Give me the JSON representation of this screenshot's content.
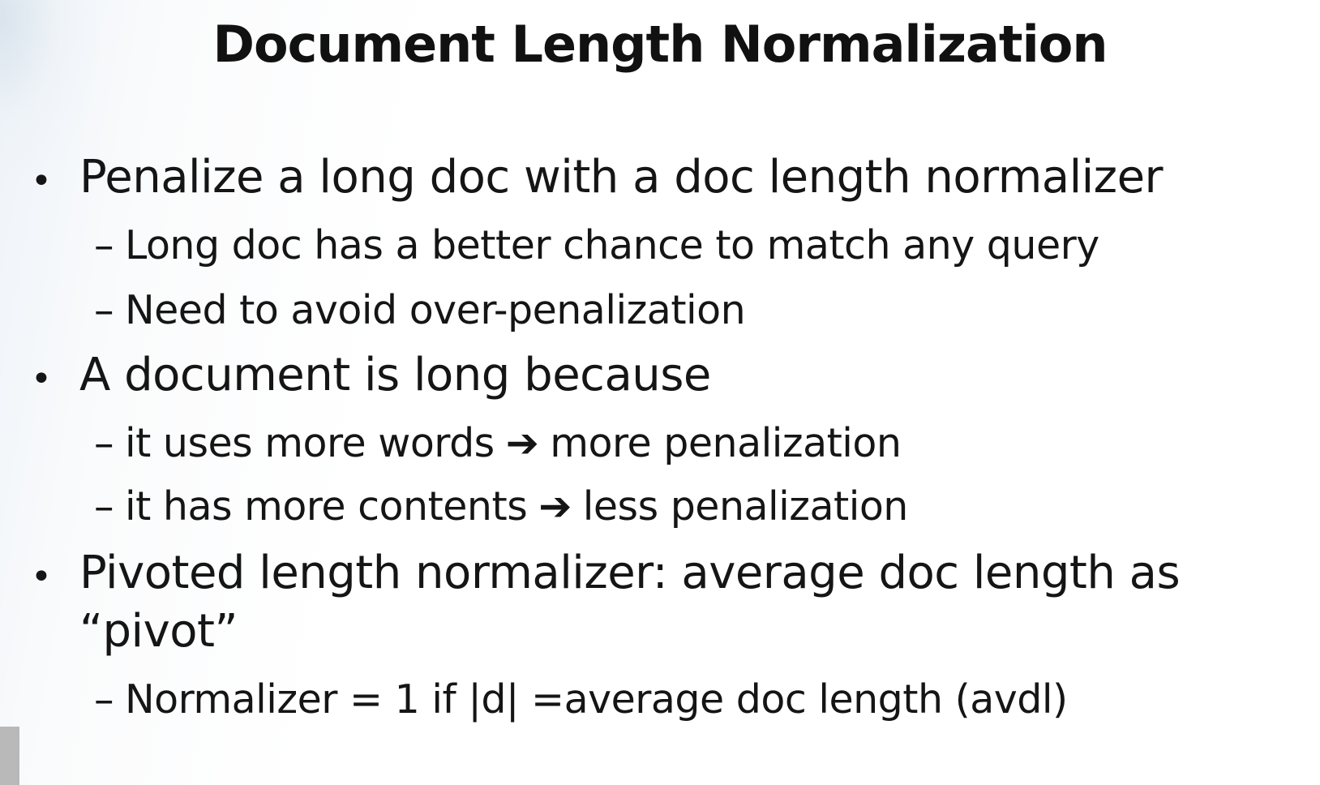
{
  "slide": {
    "title": "Document Length Normalization",
    "bullets": [
      {
        "text": "Penalize a long doc with a doc length normalizer",
        "subs": [
          "Long doc has a better chance to match any query",
          "Need to avoid over-penalization"
        ]
      },
      {
        "text": "A document is long because",
        "subs": [
          {
            "before": "it uses more words",
            "arrow": "➔",
            "after": "more penalization"
          },
          {
            "before": "it has more contents",
            "arrow": "➔",
            "after": "less penalization"
          }
        ]
      },
      {
        "text_line1": "Pivoted length normalizer: average doc length as",
        "text_line2": "“pivot”",
        "subs": [
          "Normalizer = 1 if |d| =average doc length (avdl)"
        ]
      }
    ],
    "bullet_symbol": "•",
    "dash_symbol": "–"
  }
}
